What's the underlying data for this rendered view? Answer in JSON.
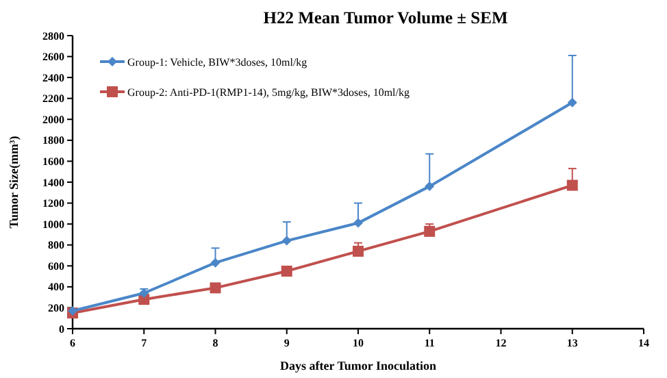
{
  "chart_data": {
    "type": "line",
    "title": "H22 Mean Tumor Volume ± SEM",
    "xlabel": "Days after Tumor Inoculation",
    "ylabel": "Tumor Size(mm³)",
    "x": [
      6,
      7,
      8,
      9,
      10,
      11,
      13
    ],
    "series": [
      {
        "name": "Group-1: Vehicle, BIW*3doses, 10ml/kg",
        "color": "#4a86c8",
        "marker": "diamond",
        "values": [
          170,
          340,
          630,
          840,
          1010,
          1360,
          2160
        ],
        "errors": [
          null,
          [
            340,
            380
          ],
          [
            630,
            770
          ],
          [
            840,
            1020
          ],
          [
            1010,
            1200
          ],
          [
            1360,
            1670
          ],
          [
            2160,
            2610
          ]
        ]
      },
      {
        "name": "Group-2: Anti-PD-1(RMP1-14), 5mg/kg, BIW*3doses, 10ml/kg",
        "color": "#c0504d",
        "marker": "square",
        "values": [
          150,
          280,
          390,
          550,
          740,
          930,
          1370
        ],
        "errors": [
          null,
          [
            280,
            290
          ],
          [
            390,
            400
          ],
          [
            550,
            590
          ],
          [
            740,
            820
          ],
          [
            930,
            1000
          ],
          [
            1370,
            1530
          ]
        ]
      }
    ],
    "xlim": [
      6,
      14
    ],
    "xticks": [
      6,
      7,
      8,
      9,
      10,
      11,
      12,
      13,
      14
    ],
    "ylim": [
      0,
      2800
    ],
    "yticks": [
      0,
      200,
      400,
      600,
      800,
      1000,
      1200,
      1400,
      1600,
      1800,
      2000,
      2200,
      2400,
      2600,
      2800
    ],
    "legend": "top left",
    "grid": false
  }
}
